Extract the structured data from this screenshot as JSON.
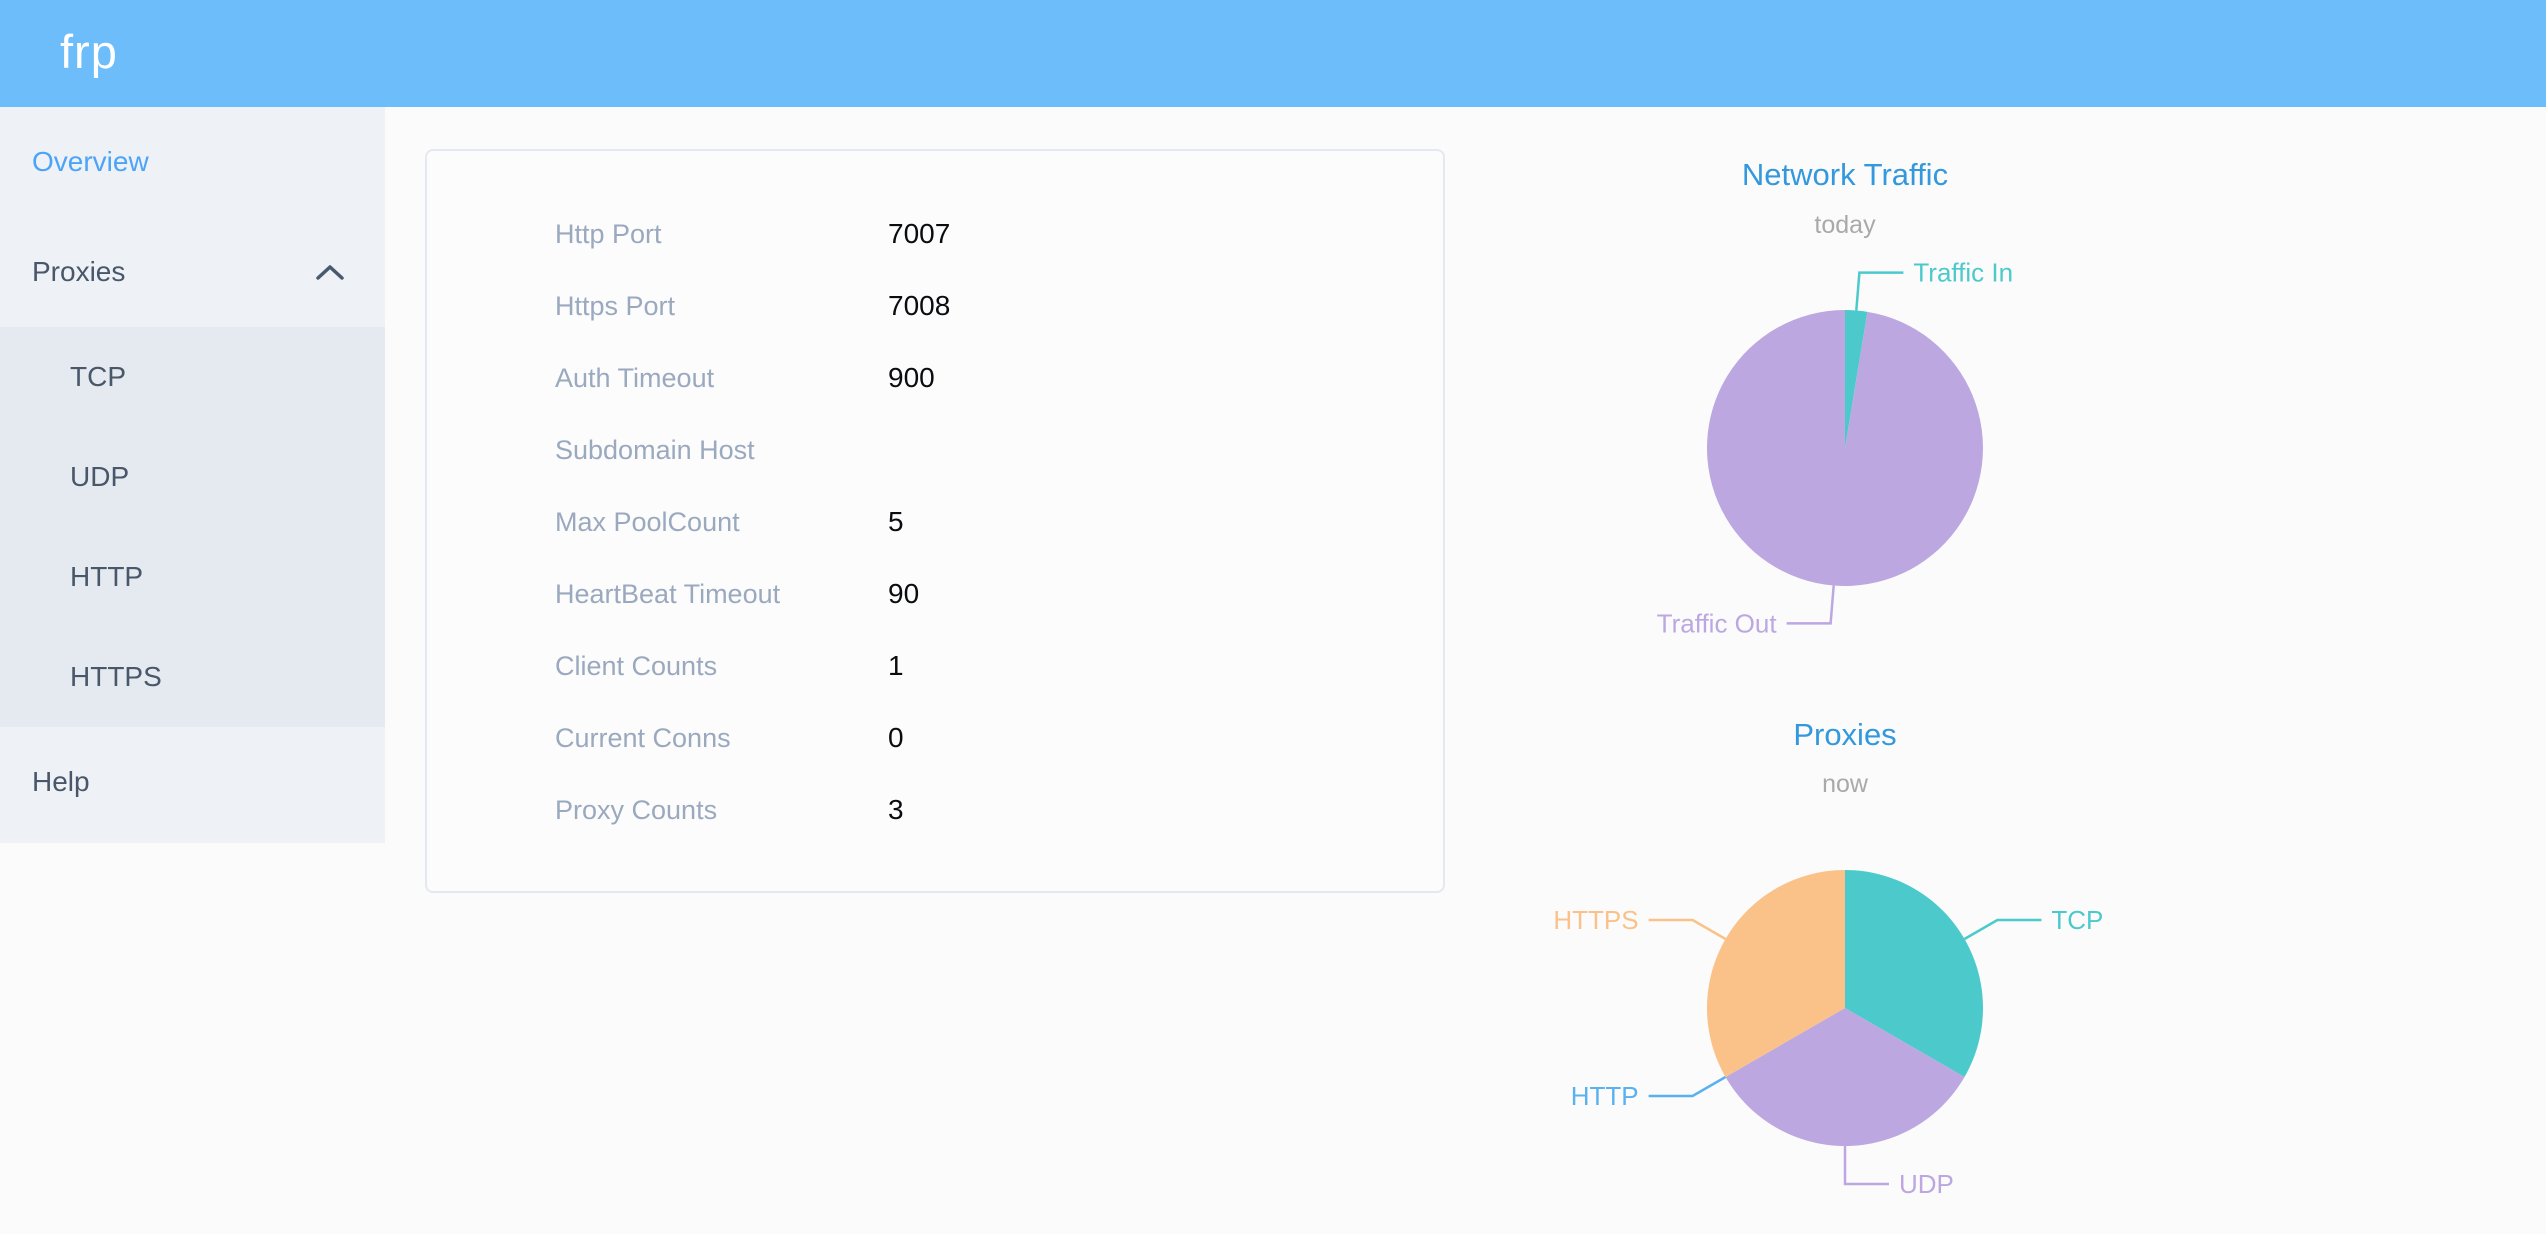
{
  "header": {
    "logo": "frp"
  },
  "sidebar": {
    "items": [
      {
        "label": "Overview",
        "active": true
      },
      {
        "label": "Proxies",
        "expanded": true,
        "children": [
          "TCP",
          "UDP",
          "HTTP",
          "HTTPS"
        ]
      },
      {
        "label": "Help"
      }
    ]
  },
  "overview": {
    "rows": [
      {
        "label": "Http Port",
        "value": "7007"
      },
      {
        "label": "Https Port",
        "value": "7008"
      },
      {
        "label": "Auth Timeout",
        "value": "900"
      },
      {
        "label": "Subdomain Host",
        "value": ""
      },
      {
        "label": "Max PoolCount",
        "value": "5"
      },
      {
        "label": "HeartBeat Timeout",
        "value": "90"
      },
      {
        "label": "Client Counts",
        "value": "1"
      },
      {
        "label": "Current Conns",
        "value": "0"
      },
      {
        "label": "Proxy Counts",
        "value": "3"
      }
    ]
  },
  "chart_data": [
    {
      "type": "pie",
      "title": "Network Traffic",
      "subtitle": "today",
      "unit": "percent_share_estimated",
      "legend_position": "callout-labels",
      "slices": [
        {
          "name": "Traffic In",
          "value": 2.6,
          "color": "#4CC9CB"
        },
        {
          "name": "Traffic Out",
          "value": 97.4,
          "color": "#BCA7E1"
        }
      ]
    },
    {
      "type": "pie",
      "title": "Proxies",
      "subtitle": "now",
      "unit": "count",
      "legend_position": "callout-labels",
      "slices": [
        {
          "name": "TCP",
          "value": 1,
          "color": "#4CC9CB"
        },
        {
          "name": "UDP",
          "value": 1,
          "color": "#BCA7E1"
        },
        {
          "name": "HTTP",
          "value": 0,
          "color": "#5AB1EF"
        },
        {
          "name": "HTTPS",
          "value": 1,
          "color": "#FAC289"
        }
      ]
    }
  ],
  "colors": {
    "header_bg": "#6CBDF9",
    "sidebar_bg": "#EEF1F6",
    "submenu_bg": "#E5E9F0",
    "active_link": "#4BA4F7",
    "chart_title": "#3398DC"
  }
}
